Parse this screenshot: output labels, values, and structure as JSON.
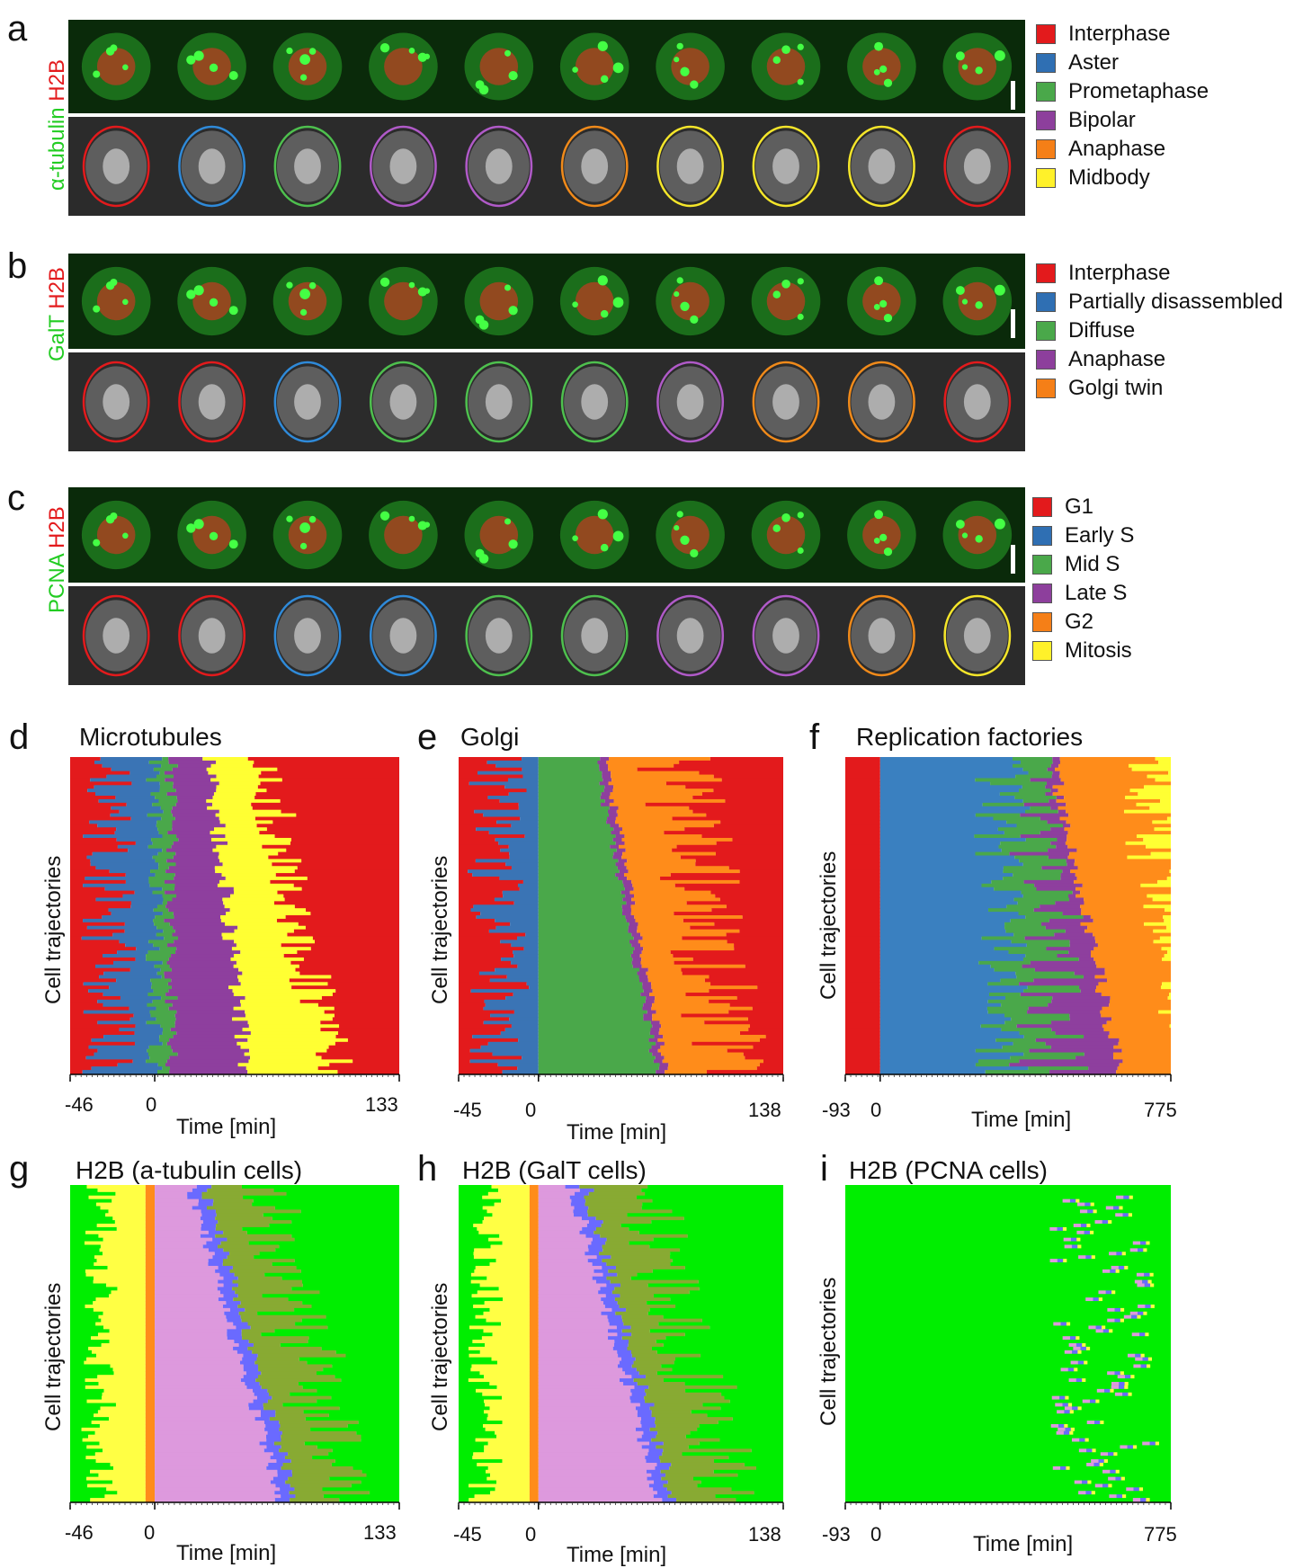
{
  "panels": {
    "a": {
      "letter": "a",
      "label_green": "α-tubulin",
      "label_red": "H2B",
      "legend": [
        {
          "label": "Interphase",
          "color": "#e31a1c"
        },
        {
          "label": "Aster",
          "color": "#2f6fb3"
        },
        {
          "label": "Prometaphase",
          "color": "#4aa84a"
        },
        {
          "label": "Bipolar",
          "color": "#8d3f9c"
        },
        {
          "label": "Anaphase",
          "color": "#f57f17"
        },
        {
          "label": "Midbody",
          "color": "#fff12a"
        }
      ],
      "outline_colors": [
        "#e31a1c",
        "#2f8ad9",
        "#4ec04e",
        "#b05ac8",
        "#b05ac8",
        "#f08a1a",
        "#f5e62a",
        "#f5e62a",
        "#f5e62a",
        "#e31a1c"
      ]
    },
    "b": {
      "letter": "b",
      "label_green": "GalT",
      "label_red": "H2B",
      "legend": [
        {
          "label": "Interphase",
          "color": "#e31a1c"
        },
        {
          "label": "Partially disassembled",
          "color": "#2f6fb3"
        },
        {
          "label": "Diffuse",
          "color": "#4aa84a"
        },
        {
          "label": "Anaphase",
          "color": "#8d3f9c"
        },
        {
          "label": "Golgi twin",
          "color": "#f57f17"
        }
      ],
      "outline_colors": [
        "#e31a1c",
        "#e31a1c",
        "#2f8ad9",
        "#4ec04e",
        "#4ec04e",
        "#4ec04e",
        "#b05ac8",
        "#f08a1a",
        "#f08a1a",
        "#e31a1c"
      ]
    },
    "c": {
      "letter": "c",
      "label_green": "PCNA",
      "label_red": "H2B",
      "legend": [
        {
          "label": "G1",
          "color": "#e31a1c"
        },
        {
          "label": "Early S",
          "color": "#2f6fb3"
        },
        {
          "label": "Mid S",
          "color": "#4aa84a"
        },
        {
          "label": "Late S",
          "color": "#8d3f9c"
        },
        {
          "label": "G2",
          "color": "#f57f17"
        },
        {
          "label": "Mitosis",
          "color": "#fff12a"
        }
      ],
      "outline_colors": [
        "#e31a1c",
        "#e31a1c",
        "#2f8ad9",
        "#2f8ad9",
        "#4ec04e",
        "#4ec04e",
        "#b05ac8",
        "#b05ac8",
        "#f08a1a",
        "#f5e62a"
      ]
    }
  },
  "plots": {
    "d": {
      "letter": "d",
      "title": "Microtubules",
      "ylabel": "Cell trajectories",
      "xlabel": "Time [min]",
      "ticks": [
        "-46",
        "0",
        "133"
      ]
    },
    "e": {
      "letter": "e",
      "title": "Golgi",
      "ylabel": "Cell trajectories",
      "xlabel": "Time [min]",
      "ticks": [
        "-45",
        "0",
        "138"
      ]
    },
    "f": {
      "letter": "f",
      "title": "Replication factories",
      "ylabel": "Cell trajectories",
      "xlabel": "Time [min]",
      "ticks": [
        "-93",
        "0",
        "775"
      ]
    },
    "g": {
      "letter": "g",
      "title": "H2B (a-tubulin cells)",
      "ylabel": "Cell trajectories",
      "xlabel": "Time [min]",
      "ticks": [
        "-46",
        "0",
        "133"
      ]
    },
    "h": {
      "letter": "h",
      "title": "H2B (GalT cells)",
      "ylabel": "Cell trajectories",
      "xlabel": "Time [min]",
      "ticks": [
        "-45",
        "0",
        "138"
      ]
    },
    "i": {
      "letter": "i",
      "title": "H2B (PCNA cells)",
      "ylabel": "Cell trajectories",
      "xlabel": "Time [min]",
      "ticks": [
        "-93",
        "0",
        "775"
      ]
    }
  },
  "chart_data": [
    {
      "type": "heatmap",
      "panel": "d",
      "x_ticks": [
        -46,
        0,
        133
      ],
      "xlim": [
        -46,
        133
      ],
      "categories": [
        "Interphase",
        "Aster",
        "Prometaphase",
        "Bipolar",
        "Anaphase",
        "Midbody"
      ],
      "colors": [
        "#e31a1c",
        "#3a74b5",
        "#4aa84a",
        "#8e3f9e",
        "#ffa000",
        "#ffff33"
      ]
    },
    {
      "type": "heatmap",
      "panel": "e",
      "x_ticks": [
        -45,
        0,
        138
      ],
      "xlim": [
        -45,
        138
      ],
      "categories": [
        "Interphase",
        "Partially disassembled",
        "Diffuse",
        "Anaphase",
        "Golgi twin"
      ],
      "colors": [
        "#e31a1c",
        "#3a74b5",
        "#4aa84a",
        "#8e3f9e",
        "#ff8c1a"
      ]
    },
    {
      "type": "heatmap",
      "panel": "f",
      "x_ticks": [
        -93,
        0,
        775
      ],
      "xlim": [
        -93,
        775
      ],
      "categories": [
        "G1",
        "Early S",
        "Mid S",
        "Late S",
        "G2",
        "Mitosis"
      ],
      "colors": [
        "#e31a1c",
        "#3a80c0",
        "#4aa84a",
        "#8e3f9e",
        "#ff8c1a",
        "#ffff33"
      ]
    },
    {
      "type": "heatmap",
      "panel": "g",
      "x_ticks": [
        -46,
        0,
        133
      ],
      "xlim": [
        -46,
        133
      ],
      "colors": [
        "#00ee00",
        "#ffff44",
        "#ff8c1a",
        "#dd99dd",
        "#6a6aff",
        "#8a2be2",
        "#88aa33"
      ]
    },
    {
      "type": "heatmap",
      "panel": "h",
      "x_ticks": [
        -45,
        0,
        138
      ],
      "xlim": [
        -45,
        138
      ],
      "colors": [
        "#00ee00",
        "#ffff44",
        "#ff8c1a",
        "#dd99dd",
        "#6a6aff",
        "#8a2be2",
        "#88aa33"
      ]
    },
    {
      "type": "heatmap",
      "panel": "i",
      "x_ticks": [
        -93,
        0,
        775
      ],
      "xlim": [
        -93,
        775
      ],
      "colors": [
        "#00ee00",
        "#ffff44",
        "#ff8c1a",
        "#dd99dd",
        "#6a6aff",
        "#8a2be2",
        "#88aa33"
      ]
    }
  ]
}
